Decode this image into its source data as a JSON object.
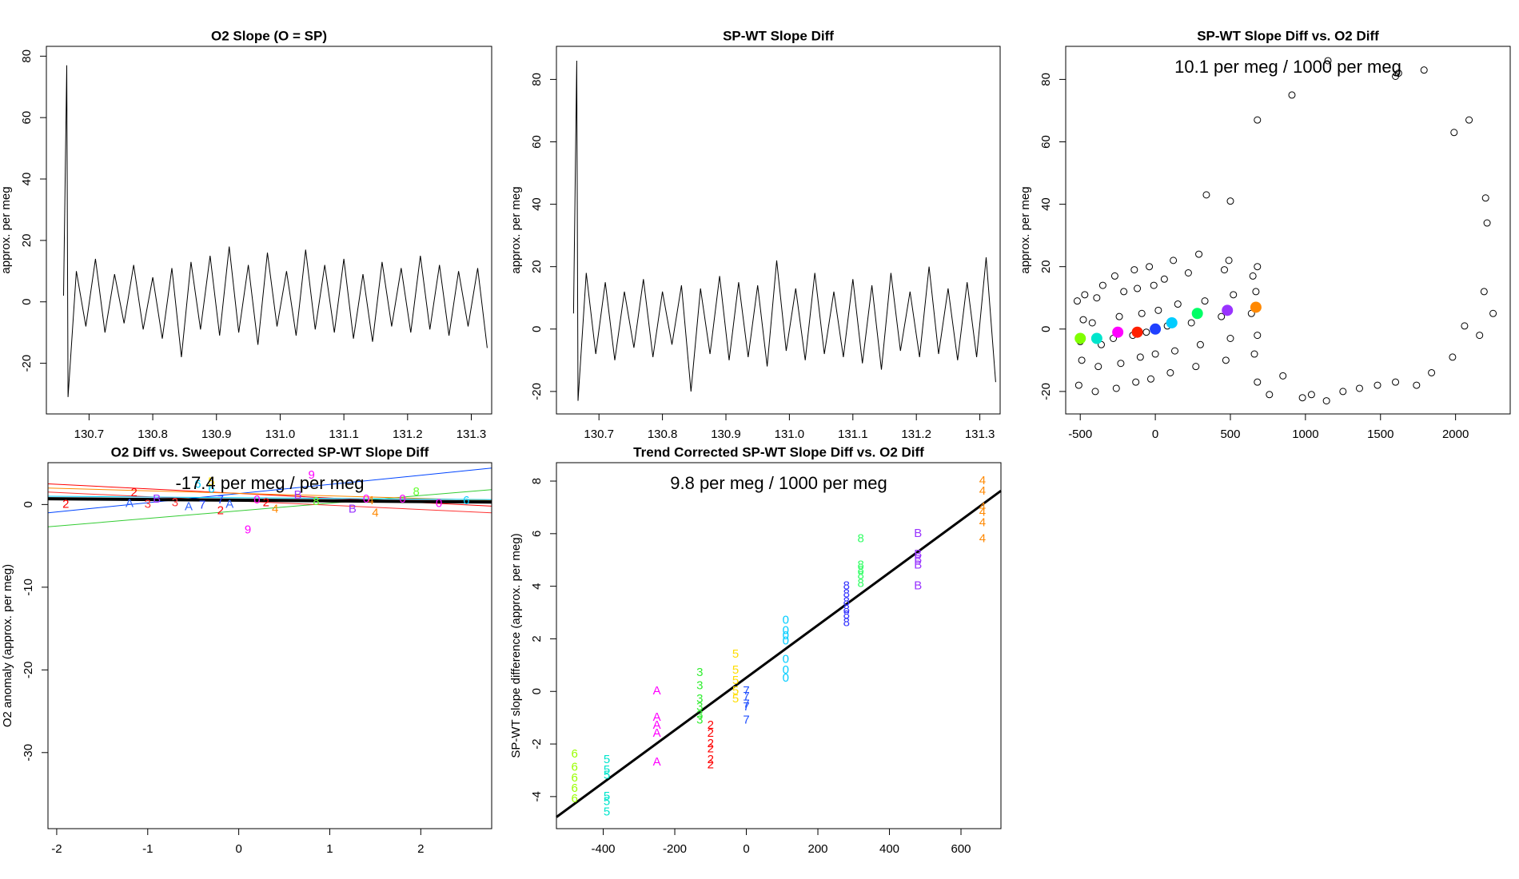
{
  "chart_data": [
    {
      "type": "line",
      "title": "O2 Slope (O = SP)",
      "y_label": "approx. per meg",
      "color": "#000000",
      "x": [
        130.66,
        130.665,
        130.667,
        130.68,
        130.695,
        130.71,
        130.725,
        130.74,
        130.755,
        130.77,
        130.785,
        130.8,
        130.815,
        130.83,
        130.845,
        130.86,
        130.875,
        130.89,
        130.905,
        130.92,
        130.935,
        130.95,
        130.965,
        130.98,
        130.995,
        131.01,
        131.025,
        131.04,
        131.055,
        131.07,
        131.085,
        131.1,
        131.115,
        131.13,
        131.145,
        131.16,
        131.175,
        131.19,
        131.205,
        131.22,
        131.235,
        131.25,
        131.265,
        131.28,
        131.295,
        131.31,
        131.325
      ],
      "values": [
        2,
        77,
        -31,
        10,
        -8,
        14,
        -10,
        9,
        -7,
        12,
        -9,
        8,
        -12,
        11,
        -18,
        13,
        -9,
        15,
        -11,
        18,
        -10,
        12,
        -14,
        16,
        -8,
        10,
        -11,
        17,
        -9,
        12,
        -10,
        14,
        -12,
        9,
        -13,
        13,
        -8,
        11,
        -10,
        15,
        -9,
        12,
        -11,
        10,
        -8,
        11,
        -15
      ],
      "xlim": [
        130.633,
        131.332
      ],
      "ylim": [
        -36.5,
        83.2
      ],
      "xticks": [
        130.7,
        130.8,
        130.9,
        {
          "value": 131,
          "label": "131.0"
        },
        131.1,
        131.2,
        131.3
      ],
      "yticks": [
        -20,
        0,
        20,
        40,
        60,
        80
      ]
    },
    {
      "type": "line",
      "title": "SP-WT Slope Diff",
      "y_label": "approx. per meg",
      "color": "#000000",
      "x": [
        130.66,
        130.665,
        130.667,
        130.68,
        130.695,
        130.71,
        130.725,
        130.74,
        130.755,
        130.77,
        130.785,
        130.8,
        130.815,
        130.83,
        130.845,
        130.86,
        130.875,
        130.89,
        130.905,
        130.92,
        130.935,
        130.95,
        130.965,
        130.98,
        130.995,
        131.01,
        131.025,
        131.04,
        131.055,
        131.07,
        131.085,
        131.1,
        131.115,
        131.13,
        131.145,
        131.16,
        131.175,
        131.19,
        131.205,
        131.22,
        131.235,
        131.25,
        131.265,
        131.28,
        131.295,
        131.31,
        131.325
      ],
      "values": [
        5,
        86,
        -23,
        18,
        -8,
        15,
        -10,
        12,
        -6,
        16,
        -9,
        12,
        -5,
        14,
        -20,
        13,
        -8,
        17,
        -10,
        15,
        -9,
        14,
        -12,
        22,
        -7,
        13,
        -10,
        18,
        -8,
        12,
        -9,
        16,
        -11,
        14,
        -13,
        18,
        -7,
        12,
        -9,
        20,
        -8,
        13,
        -10,
        15,
        -9,
        23,
        -17
      ],
      "xlim": [
        130.633,
        131.332
      ],
      "ylim": [
        -27.2,
        90.6
      ],
      "xticks": [
        130.7,
        130.8,
        130.9,
        {
          "value": 131,
          "label": "131.0"
        },
        131.1,
        131.2,
        131.3
      ],
      "yticks": [
        -20,
        0,
        20,
        40,
        60,
        80
      ]
    },
    {
      "type": "scatter",
      "title": "SP-WT Slope Diff vs. O2 Diff",
      "y_label": "approx. per meg",
      "annotation": "10.1 per meg / 1000 per meg",
      "color": "#000000",
      "x": [
        -510,
        -490,
        -500,
        -480,
        -520,
        -470,
        -400,
        -380,
        -360,
        -420,
        -390,
        -350,
        -260,
        -230,
        -280,
        -240,
        -210,
        -270,
        -130,
        -100,
        -150,
        -90,
        -120,
        -140,
        -30,
        0,
        -60,
        20,
        -10,
        -40,
        100,
        130,
        80,
        150,
        60,
        120,
        270,
        300,
        240,
        330,
        220,
        290,
        470,
        500,
        440,
        520,
        460,
        490,
        660,
        680,
        640,
        670,
        650,
        680,
        340,
        500,
        680,
        680,
        760,
        850,
        910,
        980,
        1040,
        1140,
        1150,
        1250,
        1360,
        1480,
        1600,
        1600,
        1620,
        1740,
        1790,
        1840,
        1980,
        1990,
        2060,
        2090,
        2160,
        2190,
        2200,
        2210,
        2250
      ],
      "values": [
        -18,
        -10,
        -4,
        3,
        9,
        11,
        -20,
        -12,
        -5,
        2,
        10,
        14,
        -19,
        -11,
        -3,
        4,
        12,
        17,
        -17,
        -9,
        -2,
        5,
        13,
        19,
        -16,
        -8,
        -1,
        6,
        14,
        20,
        -14,
        -7,
        1,
        8,
        16,
        22,
        -12,
        -5,
        2,
        9,
        18,
        24,
        -10,
        -3,
        4,
        11,
        19,
        22,
        -8,
        -2,
        5,
        12,
        17,
        20,
        43,
        41,
        67,
        -17,
        -21,
        -15,
        75,
        -22,
        -21,
        -23,
        86,
        -20,
        -19,
        -18,
        -17,
        81,
        82,
        -18,
        83,
        -14,
        -9,
        63,
        1,
        67,
        -2,
        12,
        42,
        34,
        5
      ],
      "marker_x": [
        -500,
        -390,
        -250,
        -120,
        0,
        110,
        280,
        480,
        670
      ],
      "marker_y": [
        -3,
        -3,
        -1,
        -1,
        0,
        2,
        5,
        6,
        7
      ],
      "marker_colors": [
        "#80ff00",
        "#00e5cc",
        "#ff00ff",
        "#ff2000",
        "#2040ff",
        "#00ccff",
        "#00ff66",
        "#9933ff",
        "#ff8800"
      ],
      "xlim": [
        -597,
        2364
      ],
      "ylim": [
        -27.2,
        90.6
      ],
      "xticks": [
        -500,
        0,
        500,
        1000,
        1500,
        2000
      ],
      "yticks": [
        -20,
        0,
        20,
        40,
        60,
        80
      ]
    },
    {
      "type": "text-scatter",
      "title": "O2 Diff vs. Sweepout Corrected SP-WT Slope Diff",
      "y_label": "O2 anomaly (approx. per meg)",
      "annotation": "-17.4 per meg / per meg",
      "series": [
        {
          "name": "2",
          "color": "#ff0000",
          "x": [
            -1.9,
            -1.15,
            -0.2,
            0.3
          ],
          "values": [
            0,
            1.4,
            -0.8,
            0.2
          ]
        },
        {
          "name": "3",
          "color": "#ff3333",
          "x": [
            -1.0,
            -0.7
          ],
          "values": [
            0,
            0.2
          ]
        },
        {
          "name": "A",
          "color": "#3366ff",
          "x": [
            -1.2,
            -0.55,
            -0.1
          ],
          "values": [
            0.1,
            -0.3,
            0
          ]
        },
        {
          "name": "B",
          "color": "#9933ff",
          "x": [
            -0.9,
            0.65,
            1.25
          ],
          "values": [
            0.6,
            1.1,
            -0.6
          ]
        },
        {
          "name": "9",
          "color": "#ff00ff",
          "x": [
            0.1,
            0.8
          ],
          "values": [
            -3.1,
            3.5
          ]
        },
        {
          "name": "8",
          "color": "#66ff33",
          "x": [
            0.85,
            1.95
          ],
          "values": [
            0.3,
            1.5
          ]
        },
        {
          "name": "4",
          "color": "#ff8800",
          "x": [
            0.4,
            1.45,
            1.5
          ],
          "values": [
            -0.6,
            0.4,
            -1.1
          ]
        },
        {
          "name": "0",
          "color": "#ff00ff",
          "x": [
            0.2,
            1.4,
            1.8,
            2.2
          ],
          "values": [
            0.5,
            0.6,
            0.6,
            0.1
          ]
        },
        {
          "name": "6",
          "color": "#00ccff",
          "x": [
            -0.45,
            -0.3,
            2.5
          ],
          "values": [
            2.4,
            1.8,
            0.4
          ]
        },
        {
          "name": "7",
          "color": "#2040ff",
          "x": [
            -0.4,
            -0.2
          ],
          "values": [
            -0.1,
            0.5
          ]
        },
        {
          "name": "5",
          "color": "#ffdd00",
          "x": [
            -0.3
          ],
          "values": [
            2.7
          ]
        }
      ],
      "lines": [
        {
          "color": "#0044ff",
          "width": 1,
          "x": [
            -2.096,
            2.779
          ],
          "values": [
            -1,
            4.4
          ]
        },
        {
          "color": "#ff0000",
          "width": 1,
          "x": [
            -2.096,
            2.779
          ],
          "values": [
            2.5,
            -0.2
          ]
        },
        {
          "color": "#33cc33",
          "width": 1,
          "x": [
            -2.096,
            2.779
          ],
          "values": [
            -2.7,
            1.8
          ]
        },
        {
          "color": "#ff8800",
          "width": 1,
          "x": [
            -2.096,
            2.779
          ],
          "values": [
            2.0,
            0.5
          ]
        },
        {
          "color": "#ff3333",
          "width": 1,
          "x": [
            -2.096,
            2.779
          ],
          "values": [
            1.5,
            -1.0
          ]
        },
        {
          "color": "#00ccff",
          "width": 1,
          "x": [
            -2.096,
            2.779
          ],
          "values": [
            1.0,
            0.6
          ]
        },
        {
          "color": "#000000",
          "width": 4,
          "x": [
            -2.096,
            2.779
          ],
          "values": [
            0.7,
            0.3
          ]
        }
      ],
      "xlim": [
        -2.096,
        2.779
      ],
      "ylim": [
        -39.2,
        5.06
      ],
      "xticks": [
        -2,
        -1,
        0,
        1,
        2
      ],
      "yticks": [
        -30,
        -20,
        -10,
        0
      ]
    },
    {
      "type": "text-scatter",
      "title": "Trend Corrected SP-WT Slope Diff vs. O2 Diff",
      "y_label": "SP-WT slope difference (approx. per meg)",
      "annotation": "9.8 per meg / 1000 per meg",
      "series": [
        {
          "name": "6",
          "color": "#99ff00",
          "x": [
            -480,
            -480,
            -480,
            -480,
            -480
          ],
          "values": [
            -2.4,
            -2.9,
            -3.3,
            -3.7,
            -4.1
          ]
        },
        {
          "name": "5",
          "color": "#00e5cc",
          "x": [
            -390,
            -390,
            -390,
            -390,
            -390,
            -390
          ],
          "values": [
            -2.6,
            -3.0,
            -3.2,
            -4.0,
            -4.2,
            -4.6
          ]
        },
        {
          "name": "A",
          "color": "#ff00ff",
          "x": [
            -250,
            -250,
            -250,
            -250,
            -250
          ],
          "values": [
            0,
            -1.0,
            -1.3,
            -1.6,
            -2.7
          ]
        },
        {
          "name": "3",
          "color": "#33ee33",
          "x": [
            -130,
            -130,
            -130,
            -130,
            -130,
            -130
          ],
          "values": [
            0.7,
            0.2,
            -0.3,
            -0.6,
            -0.9,
            -1.1
          ]
        },
        {
          "name": "2",
          "color": "#ff0000",
          "x": [
            -100,
            -100,
            -100,
            -100,
            -100,
            -100
          ],
          "values": [
            -1.3,
            -1.6,
            -2.0,
            -2.2,
            -2.6,
            -2.8
          ]
        },
        {
          "name": "5",
          "color": "#ffdd00",
          "x": [
            -30,
            -30,
            -30,
            -30,
            -30
          ],
          "values": [
            1.4,
            0.8,
            0.4,
            0.0,
            -0.3
          ]
        },
        {
          "name": "7",
          "color": "#1f4fff",
          "x": [
            0,
            0,
            0,
            0,
            0
          ],
          "values": [
            0,
            -0.2,
            -0.5,
            -0.6,
            -1.1
          ]
        },
        {
          "name": "0",
          "color": "#00ccff",
          "x": [
            110,
            110,
            110,
            110,
            110,
            110,
            110
          ],
          "values": [
            2.7,
            2.3,
            2.1,
            1.9,
            1.2,
            0.8,
            0.5
          ]
        },
        {
          "name": "8",
          "color": "#3333ff",
          "x": [
            280,
            280,
            280,
            280,
            280,
            280
          ],
          "values": [
            4.0,
            3.7,
            3.4,
            3.1,
            2.9,
            2.6
          ]
        },
        {
          "name": "8",
          "color": "#33ff66",
          "x": [
            320,
            320,
            320,
            320,
            320
          ],
          "values": [
            5.8,
            4.8,
            4.6,
            4.4,
            4.1
          ]
        },
        {
          "name": "B",
          "color": "#9933ff",
          "x": [
            480,
            480,
            480,
            480,
            480
          ],
          "values": [
            6.0,
            5.2,
            5.0,
            4.8,
            4.0
          ]
        },
        {
          "name": "4",
          "color": "#ff8800",
          "x": [
            660,
            660,
            660,
            660,
            660,
            660
          ],
          "values": [
            8.0,
            7.6,
            7.0,
            6.8,
            6.4,
            5.8
          ]
        }
      ],
      "lines": [
        {
          "color": "#000000",
          "width": 3,
          "x": [
            -530.8,
            711.7
          ],
          "values": [
            -4.78,
            7.63
          ]
        }
      ],
      "xlim": [
        -530.8,
        711.7
      ],
      "ylim": [
        -5.22,
        8.7
      ],
      "xticks": [
        -400,
        -200,
        0,
        200,
        400,
        600
      ],
      "yticks": [
        -4,
        -2,
        0,
        2,
        4,
        6,
        8
      ]
    }
  ]
}
